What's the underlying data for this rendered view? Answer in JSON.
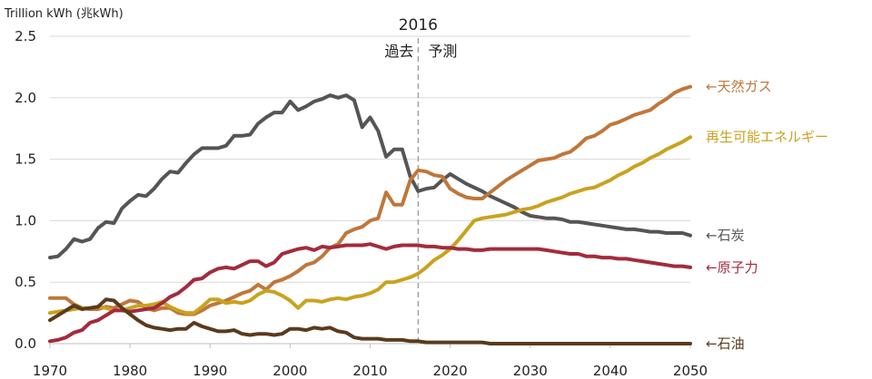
{
  "chart_data": {
    "type": "line",
    "title": "",
    "unit_label": "Trillion kWh (兆kWh)",
    "x": [
      1970,
      1971,
      1972,
      1973,
      1974,
      1975,
      1976,
      1977,
      1978,
      1979,
      1980,
      1981,
      1982,
      1983,
      1984,
      1985,
      1986,
      1987,
      1988,
      1989,
      1990,
      1991,
      1992,
      1993,
      1994,
      1995,
      1996,
      1997,
      1998,
      1999,
      2000,
      2001,
      2002,
      2003,
      2004,
      2005,
      2006,
      2007,
      2008,
      2009,
      2010,
      2011,
      2012,
      2013,
      2014,
      2015,
      2016,
      2017,
      2018,
      2019,
      2020,
      2021,
      2022,
      2023,
      2024,
      2025,
      2026,
      2027,
      2028,
      2029,
      2030,
      2031,
      2032,
      2033,
      2034,
      2035,
      2036,
      2037,
      2038,
      2039,
      2040,
      2041,
      2042,
      2043,
      2044,
      2045,
      2046,
      2047,
      2048,
      2049,
      2050
    ],
    "xlim": [
      1970,
      2050
    ],
    "ylim": [
      0,
      2.5
    ],
    "x_ticks": [
      "1970",
      "1980",
      "1990",
      "2000",
      "2010",
      "2020",
      "2030",
      "2040",
      "2050"
    ],
    "y_ticks": [
      "0.0",
      "0.5",
      "1.0",
      "1.5",
      "2.0",
      "2.5"
    ],
    "annotation": {
      "divider_year": 2016,
      "divider_label": "2016",
      "left_label": "過去",
      "right_label": "予測"
    },
    "series": [
      {
        "name": "←石炭",
        "color": "#555555",
        "values": [
          0.7,
          0.71,
          0.77,
          0.85,
          0.83,
          0.85,
          0.94,
          0.99,
          0.98,
          1.1,
          1.16,
          1.21,
          1.2,
          1.26,
          1.34,
          1.4,
          1.39,
          1.47,
          1.54,
          1.59,
          1.59,
          1.59,
          1.61,
          1.69,
          1.69,
          1.7,
          1.79,
          1.84,
          1.88,
          1.88,
          1.97,
          1.9,
          1.93,
          1.97,
          1.99,
          2.02,
          2.0,
          2.02,
          1.98,
          1.76,
          1.84,
          1.73,
          1.52,
          1.58,
          1.58,
          1.36,
          1.24,
          1.26,
          1.27,
          1.33,
          1.38,
          1.34,
          1.3,
          1.27,
          1.24,
          1.2,
          1.17,
          1.14,
          1.11,
          1.07,
          1.04,
          1.03,
          1.02,
          1.02,
          1.01,
          0.99,
          0.99,
          0.98,
          0.97,
          0.96,
          0.95,
          0.94,
          0.93,
          0.93,
          0.92,
          0.91,
          0.91,
          0.9,
          0.9,
          0.9,
          0.88
        ]
      },
      {
        "name": "←天然ガス",
        "color": "#c0763a",
        "values": [
          0.37,
          0.37,
          0.37,
          0.32,
          0.29,
          0.28,
          0.28,
          0.3,
          0.29,
          0.32,
          0.35,
          0.34,
          0.29,
          0.27,
          0.29,
          0.29,
          0.25,
          0.24,
          0.24,
          0.27,
          0.31,
          0.33,
          0.35,
          0.38,
          0.41,
          0.43,
          0.48,
          0.44,
          0.5,
          0.52,
          0.55,
          0.59,
          0.64,
          0.66,
          0.71,
          0.78,
          0.81,
          0.9,
          0.93,
          0.95,
          1.0,
          1.02,
          1.23,
          1.13,
          1.13,
          1.33,
          1.41,
          1.4,
          1.37,
          1.36,
          1.26,
          1.22,
          1.19,
          1.18,
          1.18,
          1.23,
          1.28,
          1.33,
          1.37,
          1.41,
          1.45,
          1.49,
          1.5,
          1.51,
          1.54,
          1.56,
          1.61,
          1.67,
          1.69,
          1.73,
          1.78,
          1.8,
          1.83,
          1.86,
          1.88,
          1.9,
          1.95,
          1.99,
          2.04,
          2.07,
          2.09
        ]
      },
      {
        "name": "再生可能エネルギー",
        "color": "#c9a21f",
        "values": [
          0.25,
          0.26,
          0.27,
          0.28,
          0.29,
          0.29,
          0.3,
          0.29,
          0.27,
          0.27,
          0.29,
          0.31,
          0.31,
          0.32,
          0.34,
          0.3,
          0.27,
          0.25,
          0.25,
          0.3,
          0.36,
          0.36,
          0.33,
          0.34,
          0.33,
          0.35,
          0.4,
          0.43,
          0.42,
          0.39,
          0.35,
          0.29,
          0.35,
          0.35,
          0.34,
          0.36,
          0.37,
          0.36,
          0.38,
          0.39,
          0.41,
          0.44,
          0.5,
          0.5,
          0.52,
          0.54,
          0.57,
          0.62,
          0.68,
          0.72,
          0.77,
          0.84,
          0.92,
          1.0,
          1.02,
          1.03,
          1.04,
          1.05,
          1.07,
          1.09,
          1.1,
          1.12,
          1.15,
          1.17,
          1.19,
          1.22,
          1.24,
          1.26,
          1.27,
          1.3,
          1.33,
          1.37,
          1.4,
          1.44,
          1.47,
          1.51,
          1.54,
          1.58,
          1.61,
          1.64,
          1.68
        ]
      },
      {
        "name": "←原子力",
        "color": "#a32b3c",
        "values": [
          0.02,
          0.03,
          0.05,
          0.09,
          0.11,
          0.17,
          0.19,
          0.23,
          0.27,
          0.27,
          0.26,
          0.27,
          0.28,
          0.29,
          0.33,
          0.38,
          0.41,
          0.46,
          0.52,
          0.53,
          0.58,
          0.61,
          0.62,
          0.61,
          0.64,
          0.67,
          0.67,
          0.63,
          0.66,
          0.73,
          0.75,
          0.77,
          0.78,
          0.76,
          0.79,
          0.78,
          0.79,
          0.8,
          0.8,
          0.8,
          0.81,
          0.79,
          0.77,
          0.79,
          0.8,
          0.8,
          0.8,
          0.79,
          0.79,
          0.78,
          0.78,
          0.77,
          0.77,
          0.76,
          0.76,
          0.77,
          0.77,
          0.77,
          0.77,
          0.77,
          0.77,
          0.77,
          0.76,
          0.75,
          0.74,
          0.73,
          0.73,
          0.71,
          0.71,
          0.7,
          0.7,
          0.69,
          0.69,
          0.68,
          0.67,
          0.66,
          0.65,
          0.64,
          0.63,
          0.63,
          0.62
        ]
      },
      {
        "name": "←石油",
        "color": "#5b3a1e",
        "values": [
          0.19,
          0.23,
          0.27,
          0.31,
          0.28,
          0.29,
          0.3,
          0.36,
          0.35,
          0.29,
          0.24,
          0.19,
          0.15,
          0.13,
          0.12,
          0.11,
          0.12,
          0.12,
          0.17,
          0.14,
          0.12,
          0.1,
          0.1,
          0.11,
          0.08,
          0.07,
          0.08,
          0.08,
          0.07,
          0.08,
          0.12,
          0.12,
          0.11,
          0.13,
          0.12,
          0.13,
          0.1,
          0.09,
          0.05,
          0.04,
          0.04,
          0.04,
          0.03,
          0.03,
          0.03,
          0.02,
          0.02,
          0.01,
          0.01,
          0.01,
          0.01,
          0.01,
          0.01,
          0.01,
          0.01,
          0.0,
          0.0,
          0.0,
          0.0,
          0.0,
          0.0,
          0.0,
          0.0,
          0.0,
          0.0,
          0.0,
          0.0,
          0.0,
          0.0,
          0.0,
          0.0,
          0.0,
          0.0,
          0.0,
          0.0,
          0.0,
          0.0,
          0.0,
          0.0,
          0.0,
          0.0
        ]
      }
    ]
  }
}
